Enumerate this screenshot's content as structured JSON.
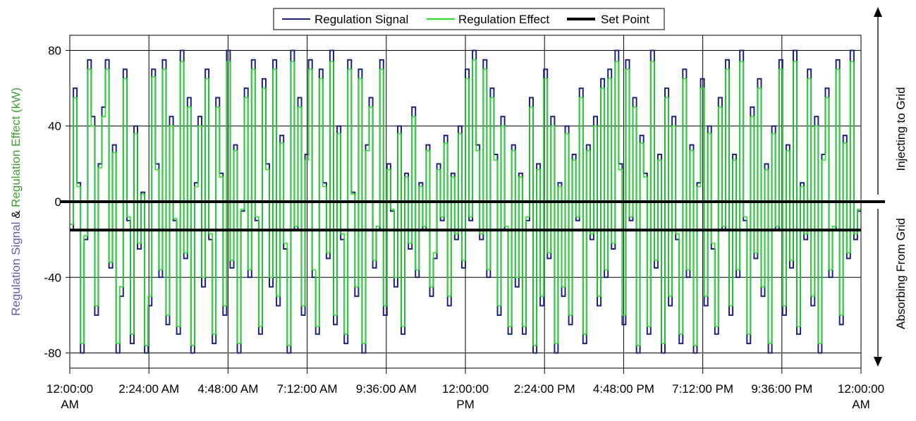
{
  "chart_data": {
    "type": "line",
    "title": "",
    "ylabel_parts": [
      "Regulation Signal",
      " & ",
      "Regulation Effect (kW)"
    ],
    "right_labels": {
      "top": "Injecting to Grid",
      "bottom": "Absorbing From Grid"
    },
    "ylim": [
      -88,
      88
    ],
    "xlim_hours": [
      0,
      24
    ],
    "yticks": [
      80,
      40,
      0,
      -40,
      -80
    ],
    "ytick_labels": [
      "80",
      "40",
      "0",
      "-40",
      "-80"
    ],
    "xticks": [
      {
        "hours": 0,
        "lines": [
          "12:00:00",
          "AM"
        ]
      },
      {
        "hours": 2.4,
        "lines": [
          "2:24:00 AM"
        ]
      },
      {
        "hours": 4.8,
        "lines": [
          "4:48:00 AM"
        ]
      },
      {
        "hours": 7.2,
        "lines": [
          "7:12:00 AM"
        ]
      },
      {
        "hours": 9.6,
        "lines": [
          "9:36:00 AM"
        ]
      },
      {
        "hours": 12,
        "lines": [
          "12:00:00",
          "PM"
        ]
      },
      {
        "hours": 14.4,
        "lines": [
          "2:24:00 PM"
        ]
      },
      {
        "hours": 16.8,
        "lines": [
          "4:48:00 PM"
        ]
      },
      {
        "hours": 19.2,
        "lines": [
          "7:12:00 PM"
        ]
      },
      {
        "hours": 21.6,
        "lines": [
          "9:36:00 PM"
        ]
      },
      {
        "hours": 24,
        "lines": [
          "12:00:00",
          "AM"
        ]
      }
    ],
    "grid": true,
    "legend_position": "top-center",
    "series": [
      {
        "name": "Regulation Signal",
        "color": "#1a237e",
        "y": [
          -15,
          60,
          10,
          -80,
          -20,
          75,
          45,
          -60,
          20,
          50,
          75,
          -35,
          30,
          -80,
          -50,
          70,
          -10,
          -75,
          40,
          -25,
          5,
          -80,
          -55,
          70,
          20,
          -40,
          75,
          -65,
          45,
          -10,
          -70,
          80,
          -30,
          55,
          -80,
          10,
          45,
          -45,
          70,
          -20,
          -75,
          55,
          15,
          -60,
          80,
          -35,
          30,
          -80,
          -5,
          60,
          -40,
          75,
          -10,
          -70,
          65,
          20,
          -45,
          75,
          -55,
          35,
          -25,
          -80,
          80,
          -15,
          55,
          -60,
          25,
          75,
          -40,
          -70,
          70,
          10,
          -30,
          80,
          -65,
          40,
          -20,
          -75,
          75,
          5,
          -50,
          70,
          -80,
          30,
          55,
          -35,
          -15,
          75,
          -60,
          20,
          -5,
          -45,
          40,
          -70,
          15,
          -25,
          50,
          -40,
          10,
          -15,
          30,
          -50,
          -30,
          20,
          -10,
          35,
          -55,
          15,
          -20,
          40,
          -35,
          70,
          -10,
          80,
          30,
          -20,
          75,
          -40,
          60,
          25,
          -60,
          45,
          -15,
          -70,
          30,
          -45,
          15,
          -70,
          -10,
          55,
          -80,
          20,
          -55,
          70,
          -30,
          45,
          -80,
          10,
          -50,
          40,
          -65,
          25,
          -10,
          60,
          -75,
          30,
          -20,
          45,
          -55,
          65,
          -40,
          70,
          -25,
          80,
          20,
          -65,
          75,
          -10,
          55,
          -80,
          35,
          15,
          -70,
          80,
          -35,
          25,
          -80,
          60,
          -55,
          45,
          -20,
          -75,
          70,
          -40,
          30,
          -80,
          10,
          65,
          -55,
          40,
          -25,
          -70,
          55,
          -15,
          75,
          -60,
          25,
          -40,
          80,
          -10,
          -75,
          50,
          -30,
          65,
          -50,
          20,
          -80,
          40,
          -15,
          75,
          -60,
          30,
          -35,
          80,
          -70,
          10,
          -20,
          70,
          -55,
          45,
          -80,
          25,
          60,
          -40,
          -15,
          75,
          -65,
          35,
          -30,
          80,
          -20,
          -5
        ]
      },
      {
        "name": "Regulation Effect",
        "color": "#22e51e",
        "y": [
          -12,
          55,
          8,
          -75,
          -18,
          70,
          40,
          -55,
          18,
          45,
          70,
          -32,
          26,
          -75,
          -45,
          65,
          -8,
          -70,
          36,
          -22,
          4,
          -76,
          -50,
          66,
          17,
          -36,
          70,
          -60,
          40,
          -9,
          -66,
          74,
          -27,
          50,
          -76,
          8,
          40,
          -40,
          65,
          -17,
          -70,
          50,
          13,
          -55,
          74,
          -31,
          27,
          -75,
          -4,
          55,
          -36,
          70,
          -8,
          -66,
          60,
          17,
          -40,
          70,
          -50,
          31,
          -22,
          -76,
          74,
          -13,
          50,
          -55,
          22,
          70,
          -36,
          -66,
          65,
          8,
          -27,
          74,
          -60,
          36,
          -17,
          -70,
          70,
          4,
          -45,
          65,
          -75,
          27,
          50,
          -31,
          -13,
          70,
          -55,
          17,
          -4,
          -40,
          36,
          -66,
          13,
          -22,
          45,
          -36,
          8,
          -13,
          27,
          -45,
          -27,
          17,
          -8,
          31,
          -50,
          13,
          -17,
          36,
          -31,
          65,
          -8,
          75,
          27,
          -17,
          70,
          -36,
          55,
          22,
          -55,
          40,
          -13,
          -66,
          27,
          -40,
          13,
          -66,
          -8,
          50,
          -76,
          17,
          -50,
          65,
          -27,
          40,
          -75,
          8,
          -45,
          36,
          -60,
          22,
          -8,
          55,
          -70,
          27,
          -17,
          40,
          -50,
          60,
          -36,
          65,
          -22,
          74,
          17,
          -60,
          70,
          -8,
          50,
          -76,
          31,
          13,
          -66,
          74,
          -31,
          22,
          -75,
          55,
          -50,
          40,
          -17,
          -70,
          65,
          -36,
          27,
          -76,
          8,
          60,
          -50,
          36,
          -22,
          -66,
          50,
          -13,
          70,
          -55,
          22,
          -36,
          74,
          -8,
          -70,
          45,
          -27,
          60,
          -45,
          17,
          -75,
          36,
          -13,
          70,
          -55,
          27,
          -31,
          74,
          -66,
          8,
          -17,
          65,
          -50,
          40,
          -75,
          22,
          55,
          -36,
          -13,
          70,
          -60,
          31,
          -27,
          74,
          -17,
          -4
        ]
      },
      {
        "name": "Set Point",
        "color": "#000000",
        "y": [
          0,
          0
        ]
      }
    ],
    "additional_horizontal_line": -15
  }
}
